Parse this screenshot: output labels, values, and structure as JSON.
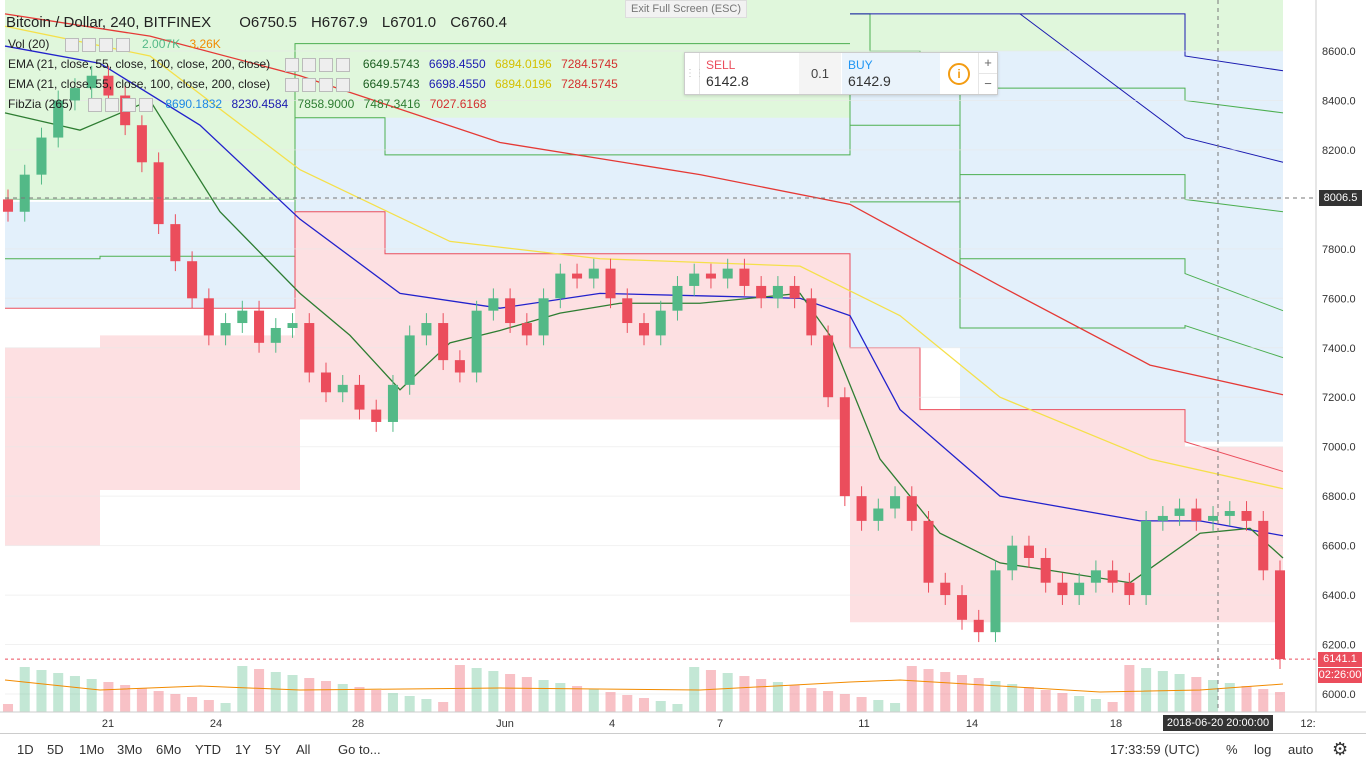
{
  "header": {
    "symbol": "Bitcoin / Dollar, 240, BITFINEX",
    "open": "O6750.5",
    "high": "H6767.9",
    "low": "L6701.0",
    "close": "C6760.4",
    "vol_label": "Vol (20)",
    "vol_value1": "2.007K",
    "vol_value2": "3.26K",
    "ema_label": "EMA (21, close, 55, close, 100, close, 200, close)",
    "ema_values": [
      "6649.5743",
      "6698.4550",
      "6894.0196",
      "7284.5745"
    ],
    "ema2_label": "EMA (21, close, 55, close, 100, close, 200, close)",
    "ema2_values": [
      "6649.5743",
      "6698.4550",
      "6894.0196",
      "7284.5745"
    ],
    "fib_label": "FibZia (265)",
    "fib_values": [
      "8690.1832",
      "8230.4584",
      "7858.9000",
      "7487.3416",
      "7027.6168"
    ]
  },
  "exit_fullscreen": "Exit Full Screen (ESC)",
  "trade": {
    "sell_label": "SELL",
    "sell_price": "6142.8",
    "qty": "0.1",
    "buy_label": "BUY",
    "buy_price": "6142.9",
    "info": "i",
    "plus": "+",
    "minus": "−"
  },
  "price_axis": {
    "ticks": [
      "8600.0",
      "8400.0",
      "8200.0",
      "8000.0",
      "7800.0",
      "7600.0",
      "7400.0",
      "7200.0",
      "7000.0",
      "6800.0",
      "6600.0",
      "6400.0",
      "6200.0",
      "6000.0"
    ],
    "current_price": "6141.1",
    "countdown": "02:26:00",
    "crosshair_price": "8006.5"
  },
  "time_axis": {
    "ticks": [
      "21",
      "24",
      "28",
      "Jun",
      "4",
      "7",
      "11",
      "14",
      "18",
      "12:"
    ],
    "crosshair_date": "2018-06-20 20:00:00"
  },
  "bottom_bar": {
    "ranges": [
      "1D",
      "5D",
      "1Mo",
      "3Mo",
      "6Mo",
      "YTD",
      "1Y",
      "5Y",
      "All"
    ],
    "goto": "Go to...",
    "clock": "17:33:59 (UTC)",
    "percent": "%",
    "log": "log",
    "auto": "auto"
  },
  "colors": {
    "up": "#53b987",
    "down": "#eb4d5c",
    "ema21": "#2e7d32",
    "ema55": "#2222cc",
    "ema100": "#f5e04a",
    "ema200": "#e53935",
    "fib_green_fill": "#e0f7dc",
    "fib_blue_fill": "#e3f0fb",
    "fib_red_fill": "#fde0e2"
  },
  "chart_data": {
    "type": "candlestick",
    "symbol": "Bitcoin / Dollar, 240, BITFINEX",
    "ylim": [
      5950,
      8750
    ],
    "x_ticks": [
      "21",
      "24",
      "28",
      "Jun",
      "4",
      "7",
      "11",
      "14",
      "18"
    ],
    "candles_approx_close": [
      7950,
      8100,
      8250,
      8400,
      8450,
      8500,
      8420,
      8300,
      8150,
      7900,
      7750,
      7600,
      7450,
      7500,
      7550,
      7420,
      7480,
      7500,
      7300,
      7220,
      7250,
      7150,
      7100,
      7250,
      7450,
      7500,
      7350,
      7300,
      7550,
      7600,
      7500,
      7450,
      7600,
      7700,
      7680,
      7720,
      7600,
      7500,
      7450,
      7550,
      7650,
      7700,
      7680,
      7720,
      7650,
      7600,
      7650,
      7600,
      7450,
      7200,
      6800,
      6700,
      6750,
      6800,
      6700,
      6450,
      6400,
      6300,
      6250,
      6500,
      6600,
      6550,
      6450,
      6400,
      6450,
      6500,
      6450,
      6400,
      6700,
      6720,
      6750,
      6700,
      6720,
      6740,
      6700,
      6500,
      6141.1
    ],
    "last_price": 6141.1
  }
}
